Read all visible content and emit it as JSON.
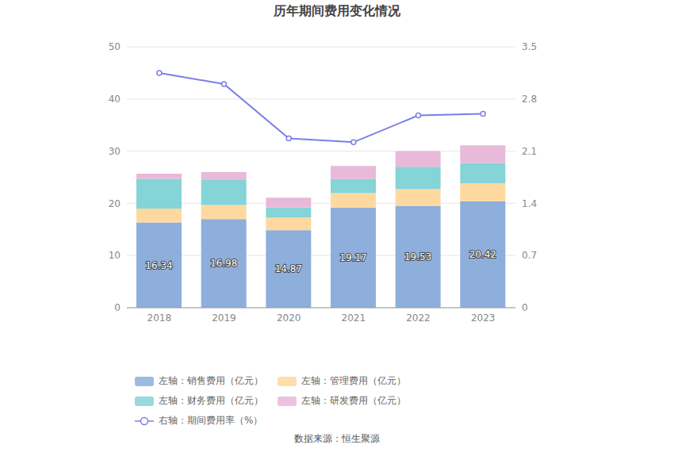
{
  "chart_data": {
    "type": "bar",
    "title": "历年期间费用变化情况",
    "source": "数据来源：恒生聚源",
    "stacked": true,
    "grid": true,
    "legend": "bottom",
    "categories": [
      "2018",
      "2019",
      "2020",
      "2021",
      "2022",
      "2023"
    ],
    "ylim": [
      0,
      50
    ],
    "yticks": [
      0,
      10,
      20,
      30,
      40,
      50
    ],
    "y2lim": [
      0,
      3.5
    ],
    "y2ticks": [
      0,
      0.7,
      1.4,
      2.1,
      2.8,
      3.5
    ],
    "series": [
      {
        "name": "左轴：销售费用（亿元）",
        "type": "bar",
        "color": "#8eaedb",
        "data_labels": true,
        "values": [
          16.34,
          16.98,
          14.87,
          19.17,
          19.53,
          20.42
        ]
      },
      {
        "name": "左轴：管理费用（亿元）",
        "type": "bar",
        "color": "#fdd9a0",
        "values": [
          2.66,
          2.7,
          2.4,
          2.8,
          3.2,
          3.4
        ]
      },
      {
        "name": "左轴：财务费用（亿元）",
        "type": "bar",
        "color": "#84d4d8",
        "values": [
          5.7,
          4.8,
          1.9,
          2.7,
          4.3,
          3.9
        ]
      },
      {
        "name": "左轴：研发费用（亿元）",
        "type": "bar",
        "color": "#e8b9d8",
        "values": [
          1.0,
          1.5,
          1.9,
          2.5,
          3.0,
          3.4
        ]
      },
      {
        "name": "右轴：期间费用率（%）",
        "type": "line",
        "axis": "y2",
        "color": "#7b7fe8",
        "marker": "circle",
        "values": [
          3.15,
          3.0,
          2.27,
          2.22,
          2.58,
          2.6
        ]
      }
    ]
  }
}
